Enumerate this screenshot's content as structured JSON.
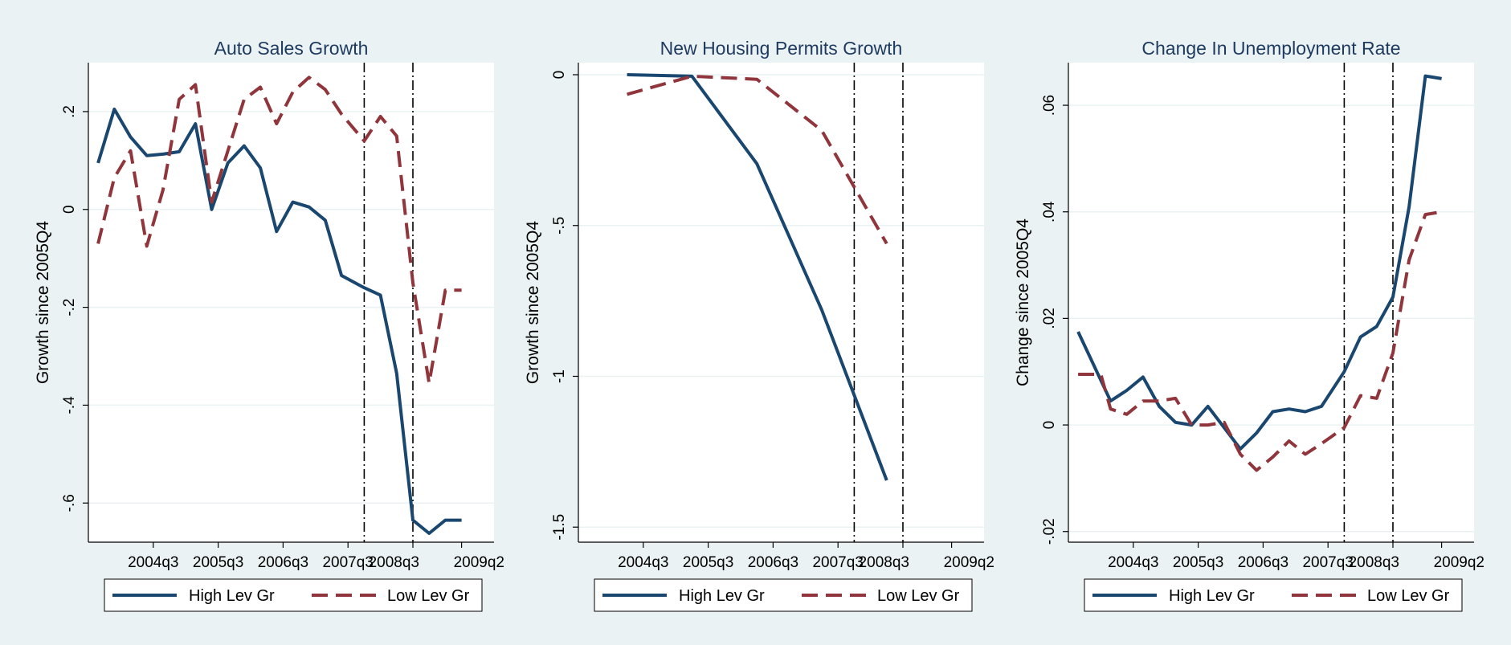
{
  "colors": {
    "outer_background": "#eaf2f3",
    "plot_background": "#ffffff",
    "grid": "#eaf2f3",
    "axis": "#000000",
    "title_text": "#1e3a5f",
    "high_lev": "#1a476f",
    "low_lev": "#90353b"
  },
  "legend": {
    "high_label": "High Lev Gr",
    "low_label": "Low Lev Gr"
  },
  "chart_data": [
    {
      "type": "line",
      "title": "Auto Sales Growth",
      "ylabel": "Growth since 2005Q4",
      "xlabel": "",
      "xlim": [
        2003.5,
        2009.75
      ],
      "ylim": [
        -0.68,
        0.3
      ],
      "yticks": [
        0.2,
        0,
        -0.2,
        -0.4,
        -0.6
      ],
      "ytick_labels": [
        ".2",
        "0",
        "-.2",
        "-.4",
        "-.6"
      ],
      "xticks": [
        2004.5,
        2005.5,
        2006.5,
        2007.5,
        2008.5,
        2009.25
      ],
      "xtick_labels": [
        "2004q3",
        "2005q3",
        "2006q3",
        "2007q3",
        "2008q3",
        "2009q2"
      ],
      "vlines": [
        2007.75,
        2008.5
      ],
      "grid": true,
      "legend_position": "bottom",
      "series": [
        {
          "name": "High Lev Gr",
          "style": "solid",
          "x": [
            2003.65,
            2003.9,
            2004.15,
            2004.4,
            2004.65,
            2004.9,
            2005.15,
            2005.4,
            2005.65,
            2005.9,
            2006.15,
            2006.4,
            2006.65,
            2006.9,
            2007.15,
            2007.4,
            2007.75,
            2008.0,
            2008.25,
            2008.5,
            2008.75,
            2009.0,
            2009.25
          ],
          "y": [
            0.095,
            0.205,
            0.148,
            0.11,
            0.113,
            0.118,
            0.175,
            0.0,
            0.095,
            0.13,
            0.085,
            -0.045,
            0.015,
            0.005,
            -0.022,
            -0.135,
            -0.16,
            -0.175,
            -0.335,
            -0.635,
            -0.662,
            -0.635,
            -0.635
          ]
        },
        {
          "name": "Low Lev Gr",
          "style": "dashed",
          "x": [
            2003.65,
            2003.9,
            2004.15,
            2004.4,
            2004.65,
            2004.9,
            2005.15,
            2005.4,
            2005.65,
            2005.9,
            2006.15,
            2006.4,
            2006.65,
            2006.9,
            2007.15,
            2007.4,
            2007.75,
            2008.0,
            2008.25,
            2008.5,
            2008.75,
            2009.0,
            2009.25
          ],
          "y": [
            -0.07,
            0.065,
            0.12,
            -0.075,
            0.04,
            0.225,
            0.255,
            0.015,
            0.12,
            0.225,
            0.25,
            0.175,
            0.24,
            0.27,
            0.245,
            0.195,
            0.14,
            0.19,
            0.15,
            -0.15,
            -0.355,
            -0.165,
            -0.165
          ]
        }
      ]
    },
    {
      "type": "line",
      "title": "New Housing Permits Growth",
      "ylabel": "Growth since 2005Q4",
      "xlabel": "",
      "xlim": [
        2003.5,
        2009.75
      ],
      "ylim": [
        -1.55,
        0.04
      ],
      "yticks": [
        0,
        -0.5,
        -1,
        -1.5
      ],
      "ytick_labels": [
        "0",
        "-.5",
        "-1",
        "-1.5"
      ],
      "xticks": [
        2004.5,
        2005.5,
        2006.5,
        2007.5,
        2008.5,
        2009.25
      ],
      "xtick_labels": [
        "2004q3",
        "2005q3",
        "2006q3",
        "2007q3",
        "2008q3",
        "2009q2"
      ],
      "vlines": [
        2007.75,
        2008.5
      ],
      "grid": true,
      "legend_position": "bottom",
      "series": [
        {
          "name": "High Lev Gr",
          "style": "solid",
          "x": [
            2004.25,
            2005.25,
            2006.25,
            2007.25,
            2008.25
          ],
          "y": [
            0.0,
            -0.005,
            -0.295,
            -0.78,
            -1.345
          ]
        },
        {
          "name": "Low Lev Gr",
          "style": "dashed",
          "x": [
            2004.25,
            2005.25,
            2006.25,
            2007.25,
            2008.25
          ],
          "y": [
            -0.065,
            -0.005,
            -0.015,
            -0.185,
            -0.56
          ]
        }
      ]
    },
    {
      "type": "line",
      "title": "Change In Unemployment Rate",
      "ylabel": "Change since 2005Q4",
      "xlabel": "",
      "xlim": [
        2003.5,
        2009.75
      ],
      "ylim": [
        -0.022,
        0.068
      ],
      "yticks": [
        -0.02,
        0,
        0.02,
        0.04,
        0.06
      ],
      "ytick_labels": [
        "-.02",
        "0",
        ".02",
        ".04",
        ".06"
      ],
      "xticks": [
        2004.5,
        2005.5,
        2006.5,
        2007.5,
        2008.5,
        2009.25
      ],
      "xtick_labels": [
        "2004q3",
        "2005q3",
        "2006q3",
        "2007q3",
        "2008q3",
        "2009q2"
      ],
      "vlines": [
        2007.75,
        2008.5
      ],
      "grid": true,
      "legend_position": "bottom",
      "series": [
        {
          "name": "High Lev Gr",
          "style": "solid",
          "x": [
            2003.65,
            2004.15,
            2004.4,
            2004.65,
            2004.9,
            2005.15,
            2005.4,
            2005.65,
            2005.9,
            2006.15,
            2006.4,
            2006.65,
            2006.9,
            2007.15,
            2007.4,
            2007.75,
            2008.0,
            2008.25,
            2008.5,
            2008.75,
            2009.0,
            2009.25
          ],
          "y": [
            0.0175,
            0.0045,
            0.0065,
            0.009,
            0.0035,
            0.0005,
            0.0,
            0.0035,
            -0.0005,
            -0.0045,
            -0.0015,
            0.0025,
            0.003,
            0.0025,
            0.0035,
            0.01,
            0.0165,
            0.0185,
            0.024,
            0.041,
            0.0655,
            0.065
          ]
        },
        {
          "name": "Low Lev Gr",
          "style": "dashed",
          "x": [
            2003.65,
            2004.0,
            2004.15,
            2004.4,
            2004.65,
            2004.9,
            2005.15,
            2005.4,
            2005.65,
            2005.9,
            2006.15,
            2006.4,
            2006.65,
            2006.9,
            2007.15,
            2007.4,
            2007.75,
            2008.0,
            2008.25,
            2008.5,
            2008.75,
            2009.0,
            2009.25
          ],
          "y": [
            0.0095,
            0.0095,
            0.003,
            0.002,
            0.0045,
            0.0045,
            0.005,
            0.0,
            0.0,
            0.0005,
            -0.0055,
            -0.0085,
            -0.006,
            -0.003,
            -0.0055,
            -0.0035,
            -0.0005,
            0.0055,
            0.005,
            0.0135,
            0.031,
            0.0395,
            0.04
          ]
        }
      ]
    }
  ]
}
